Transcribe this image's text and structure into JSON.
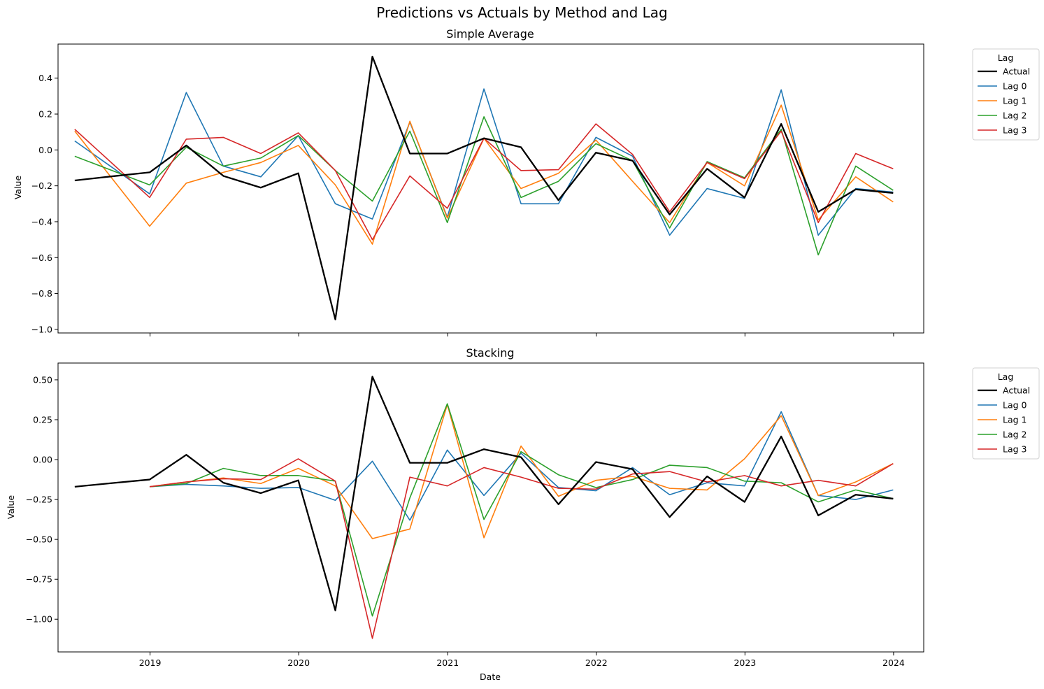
{
  "figure": {
    "suptitle": "Predictions vs Actuals by Method and Lag",
    "xlabel": "Date"
  },
  "colors": {
    "Actual": "#000000",
    "Lag 0": "#1f77b4",
    "Lag 1": "#ff7f0e",
    "Lag 2": "#2ca02c",
    "Lag 3": "#d62728"
  },
  "chart_data": [
    {
      "type": "line",
      "title": "Simple Average",
      "ylabel": "Value",
      "xlabel": "",
      "xlim": [
        "2018-05-20",
        "2024-03-15"
      ],
      "ylim": [
        -1.02,
        0.59
      ],
      "yticks": [
        -1.0,
        -0.8,
        -0.6,
        -0.4,
        -0.2,
        0.0,
        0.2,
        0.4
      ],
      "ytick_labels": [
        "−1.0",
        "−0.8",
        "−0.6",
        "−0.4",
        "−0.2",
        "0.0",
        "0.2",
        "0.4"
      ],
      "xticks": [
        "2019-01-01",
        "2020-01-01",
        "2021-01-01",
        "2022-01-01",
        "2023-01-01",
        "2024-01-01"
      ],
      "xtick_labels": [],
      "legend": {
        "title": "Lag",
        "placement": "upper right outside"
      },
      "x": [
        "2018-06-30",
        "2018-09-30",
        "2018-12-31",
        "2019-03-31",
        "2019-06-30",
        "2019-09-30",
        "2019-12-31",
        "2020-03-31",
        "2020-06-30",
        "2020-09-30",
        "2020-12-31",
        "2021-03-31",
        "2021-06-30",
        "2021-09-30",
        "2021-12-31",
        "2022-03-31",
        "2022-06-30",
        "2022-09-30",
        "2022-12-31",
        "2023-03-31",
        "2023-06-30",
        "2023-09-30",
        "2023-12-31"
      ],
      "series": [
        {
          "name": "Actual",
          "values": [
            -0.17,
            -0.147,
            -0.125,
            0.025,
            -0.145,
            -0.21,
            -0.13,
            -0.945,
            0.52,
            -0.02,
            -0.02,
            0.065,
            0.015,
            -0.28,
            -0.015,
            -0.06,
            -0.36,
            -0.105,
            -0.265,
            0.145,
            -0.345,
            -0.22,
            -0.24
          ]
        },
        {
          "name": "Lag 0",
          "values": [
            0.05,
            null,
            -0.245,
            0.32,
            -0.09,
            -0.15,
            0.08,
            -0.3,
            -0.385,
            0.155,
            -0.375,
            0.34,
            -0.3,
            -0.3,
            0.07,
            -0.035,
            -0.475,
            -0.215,
            -0.27,
            0.335,
            -0.475,
            -0.215,
            -0.235
          ]
        },
        {
          "name": "Lag 1",
          "values": [
            0.105,
            null,
            -0.425,
            -0.185,
            -0.125,
            -0.07,
            0.025,
            -0.195,
            -0.525,
            0.16,
            -0.38,
            0.065,
            -0.215,
            -0.13,
            0.055,
            -0.175,
            -0.405,
            -0.07,
            -0.2,
            0.25,
            -0.39,
            -0.15,
            -0.29
          ]
        },
        {
          "name": "Lag 2",
          "values": [
            -0.035,
            null,
            -0.195,
            0.015,
            -0.09,
            -0.045,
            0.08,
            -0.115,
            -0.285,
            0.105,
            -0.405,
            0.185,
            -0.265,
            -0.175,
            0.035,
            -0.06,
            -0.435,
            -0.065,
            -0.155,
            0.115,
            -0.585,
            -0.09,
            -0.225
          ]
        },
        {
          "name": "Lag 3",
          "values": [
            0.115,
            null,
            -0.265,
            0.06,
            0.07,
            -0.02,
            0.095,
            -0.115,
            -0.5,
            -0.145,
            -0.325,
            0.065,
            -0.115,
            -0.11,
            0.145,
            -0.025,
            -0.345,
            -0.07,
            -0.16,
            0.105,
            -0.405,
            -0.02,
            -0.105
          ]
        }
      ]
    },
    {
      "type": "line",
      "title": "Stacking",
      "ylabel": "Value",
      "xlabel": "Date",
      "xlim": [
        "2018-05-20",
        "2024-03-15"
      ],
      "ylim": [
        -1.205,
        0.605
      ],
      "yticks": [
        -1.0,
        -0.75,
        -0.5,
        -0.25,
        0.0,
        0.25,
        0.5
      ],
      "ytick_labels": [
        "−1.00",
        "−0.75",
        "−0.50",
        "−0.25",
        "0.00",
        "0.25",
        "0.50"
      ],
      "xticks": [
        "2019-01-01",
        "2020-01-01",
        "2021-01-01",
        "2022-01-01",
        "2023-01-01",
        "2024-01-01"
      ],
      "xtick_labels": [
        "2019",
        "2020",
        "2021",
        "2022",
        "2023",
        "2024"
      ],
      "legend": {
        "title": "Lag",
        "placement": "upper right outside"
      },
      "x": [
        "2018-06-30",
        "2018-09-30",
        "2018-12-31",
        "2019-03-31",
        "2019-06-30",
        "2019-09-30",
        "2019-12-31",
        "2020-03-31",
        "2020-06-30",
        "2020-09-30",
        "2020-12-31",
        "2021-03-31",
        "2021-06-30",
        "2021-09-30",
        "2021-12-31",
        "2022-03-31",
        "2022-06-30",
        "2022-09-30",
        "2022-12-31",
        "2023-03-31",
        "2023-06-30",
        "2023-09-30",
        "2023-12-31"
      ],
      "series": [
        {
          "name": "Actual",
          "values": [
            -0.17,
            -0.147,
            -0.125,
            0.03,
            -0.145,
            -0.21,
            -0.13,
            -0.945,
            0.52,
            -0.02,
            -0.02,
            0.065,
            0.015,
            -0.28,
            -0.015,
            -0.06,
            -0.36,
            -0.105,
            -0.265,
            0.145,
            -0.35,
            -0.22,
            -0.245
          ]
        },
        {
          "name": "Lag 0",
          "values": [
            null,
            null,
            -0.17,
            -0.155,
            -0.165,
            -0.18,
            -0.175,
            -0.255,
            -0.01,
            -0.38,
            0.06,
            -0.225,
            0.04,
            -0.175,
            -0.195,
            -0.05,
            -0.22,
            -0.145,
            -0.165,
            0.3,
            -0.225,
            -0.25,
            -0.19
          ]
        },
        {
          "name": "Lag 1",
          "values": [
            null,
            null,
            -0.17,
            -0.14,
            -0.115,
            -0.15,
            -0.055,
            -0.165,
            -0.495,
            -0.435,
            0.345,
            -0.49,
            0.085,
            -0.23,
            -0.13,
            -0.105,
            -0.18,
            -0.19,
            0.005,
            0.275,
            -0.225,
            -0.14,
            -0.025
          ]
        },
        {
          "name": "Lag 2",
          "values": [
            null,
            null,
            -0.17,
            -0.15,
            -0.055,
            -0.1,
            -0.1,
            -0.135,
            -0.98,
            -0.24,
            0.35,
            -0.375,
            0.05,
            -0.095,
            -0.175,
            -0.125,
            -0.035,
            -0.05,
            -0.135,
            -0.145,
            -0.265,
            -0.19,
            -0.245
          ]
        },
        {
          "name": "Lag 3",
          "values": [
            null,
            null,
            -0.17,
            -0.14,
            -0.12,
            -0.125,
            0.005,
            -0.135,
            -1.12,
            -0.11,
            -0.165,
            -0.05,
            -0.11,
            -0.18,
            -0.185,
            -0.09,
            -0.075,
            -0.14,
            -0.1,
            -0.165,
            -0.13,
            -0.165,
            -0.025
          ]
        }
      ]
    }
  ]
}
